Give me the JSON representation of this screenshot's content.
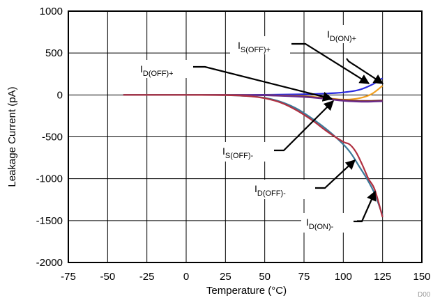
{
  "chart_data": {
    "type": "line",
    "title": "",
    "xlabel": "Temperature (°C)",
    "ylabel": "Leakage Current (pA)",
    "xlim": [
      -75,
      150
    ],
    "ylim": [
      -2000,
      1000
    ],
    "xticks": [
      -75,
      -50,
      -25,
      0,
      25,
      50,
      75,
      100,
      125,
      150
    ],
    "yticks": [
      -2000,
      -1500,
      -1000,
      -500,
      0,
      500,
      1000
    ],
    "grid": true,
    "legend": "none",
    "series": [
      {
        "label_id": "is_off_plus",
        "color": "#2a2ae0",
        "points": [
          [
            -40,
            0
          ],
          [
            0,
            0
          ],
          [
            25,
            0
          ],
          [
            50,
            2
          ],
          [
            75,
            8
          ],
          [
            90,
            18
          ],
          [
            100,
            30
          ],
          [
            110,
            60
          ],
          [
            118,
            120
          ],
          [
            125,
            200
          ]
        ]
      },
      {
        "label_id": "id_on_plus",
        "color": "#f2a020",
        "points": [
          [
            -40,
            0
          ],
          [
            0,
            0
          ],
          [
            25,
            0
          ],
          [
            50,
            -3
          ],
          [
            75,
            -15
          ],
          [
            90,
            -40
          ],
          [
            100,
            -55
          ],
          [
            110,
            -40
          ],
          [
            118,
            10
          ],
          [
            125,
            110
          ]
        ]
      },
      {
        "label_id": "id_off_plus",
        "color": "#7a3030",
        "points": [
          [
            -40,
            0
          ],
          [
            0,
            0
          ],
          [
            25,
            0
          ],
          [
            50,
            -3
          ],
          [
            75,
            -20
          ],
          [
            90,
            -45
          ],
          [
            100,
            -60
          ],
          [
            110,
            -70
          ],
          [
            118,
            -70
          ],
          [
            125,
            -65
          ]
        ]
      },
      {
        "label_id": "is_off_minus",
        "color": "#6a2a8a",
        "points": [
          [
            -40,
            0
          ],
          [
            0,
            0
          ],
          [
            25,
            0
          ],
          [
            50,
            -5
          ],
          [
            75,
            -25
          ],
          [
            90,
            -50
          ],
          [
            100,
            -70
          ],
          [
            110,
            -80
          ],
          [
            118,
            -80
          ],
          [
            125,
            -75
          ]
        ]
      },
      {
        "label_id": "id_off_minus",
        "color": "#3a7a9a",
        "points": [
          [
            -40,
            0
          ],
          [
            0,
            0
          ],
          [
            25,
            -2
          ],
          [
            40,
            -15
          ],
          [
            50,
            -35
          ],
          [
            60,
            -80
          ],
          [
            70,
            -160
          ],
          [
            80,
            -280
          ],
          [
            90,
            -420
          ],
          [
            100,
            -590
          ],
          [
            105,
            -700
          ],
          [
            110,
            -850
          ],
          [
            115,
            -1000
          ],
          [
            120,
            -1180
          ],
          [
            125,
            -1440
          ]
        ]
      },
      {
        "label_id": "id_on_minus",
        "color": "#b03040",
        "points": [
          [
            -40,
            0
          ],
          [
            0,
            0
          ],
          [
            25,
            -2
          ],
          [
            40,
            -15
          ],
          [
            50,
            -40
          ],
          [
            60,
            -90
          ],
          [
            70,
            -180
          ],
          [
            80,
            -300
          ],
          [
            90,
            -440
          ],
          [
            100,
            -560
          ],
          [
            104,
            -590
          ],
          [
            108,
            -680
          ],
          [
            112,
            -830
          ],
          [
            116,
            -1000
          ],
          [
            120,
            -1130
          ],
          [
            125,
            -1460
          ]
        ]
      }
    ],
    "annotations": [
      {
        "id": "is_off_plus",
        "main": "I",
        "sub": "S(OFF)+"
      },
      {
        "id": "id_on_plus",
        "main": "I",
        "sub": "D(ON)+"
      },
      {
        "id": "id_off_plus",
        "main": "I",
        "sub": "D(OFF)+"
      },
      {
        "id": "is_off_minus",
        "main": "I",
        "sub": "S(OFF)-"
      },
      {
        "id": "id_off_minus",
        "main": "I",
        "sub": "D(OFF)-"
      },
      {
        "id": "id_on_minus",
        "main": "I",
        "sub": "D(ON)-"
      }
    ],
    "footer_text": "D00"
  }
}
